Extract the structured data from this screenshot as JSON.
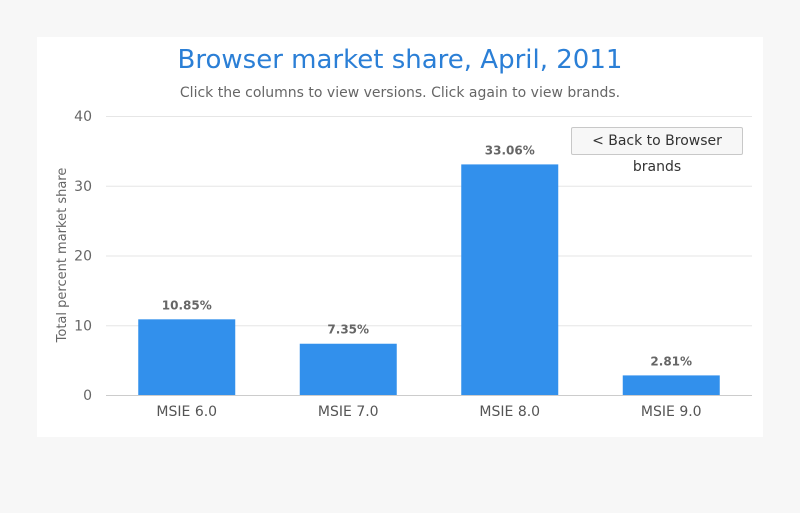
{
  "chart_data": {
    "type": "bar",
    "title": "Browser market share, April, 2011",
    "subtitle": "Click the columns to view versions. Click again to view brands.",
    "ylabel": "Total percent market share",
    "xlabel": "",
    "categories": [
      "MSIE 6.0",
      "MSIE 7.0",
      "MSIE 8.0",
      "MSIE 9.0"
    ],
    "values": [
      10.85,
      7.35,
      33.06,
      2.81
    ],
    "data_labels": [
      "10.85%",
      "7.35%",
      "33.06%",
      "2.81%"
    ],
    "ylim": [
      0,
      40
    ],
    "yticks": [
      0,
      10,
      20,
      30,
      40
    ],
    "grid": true,
    "bar_color": "#3290ec"
  },
  "controls": {
    "back_label": "< Back to Browser brands"
  }
}
